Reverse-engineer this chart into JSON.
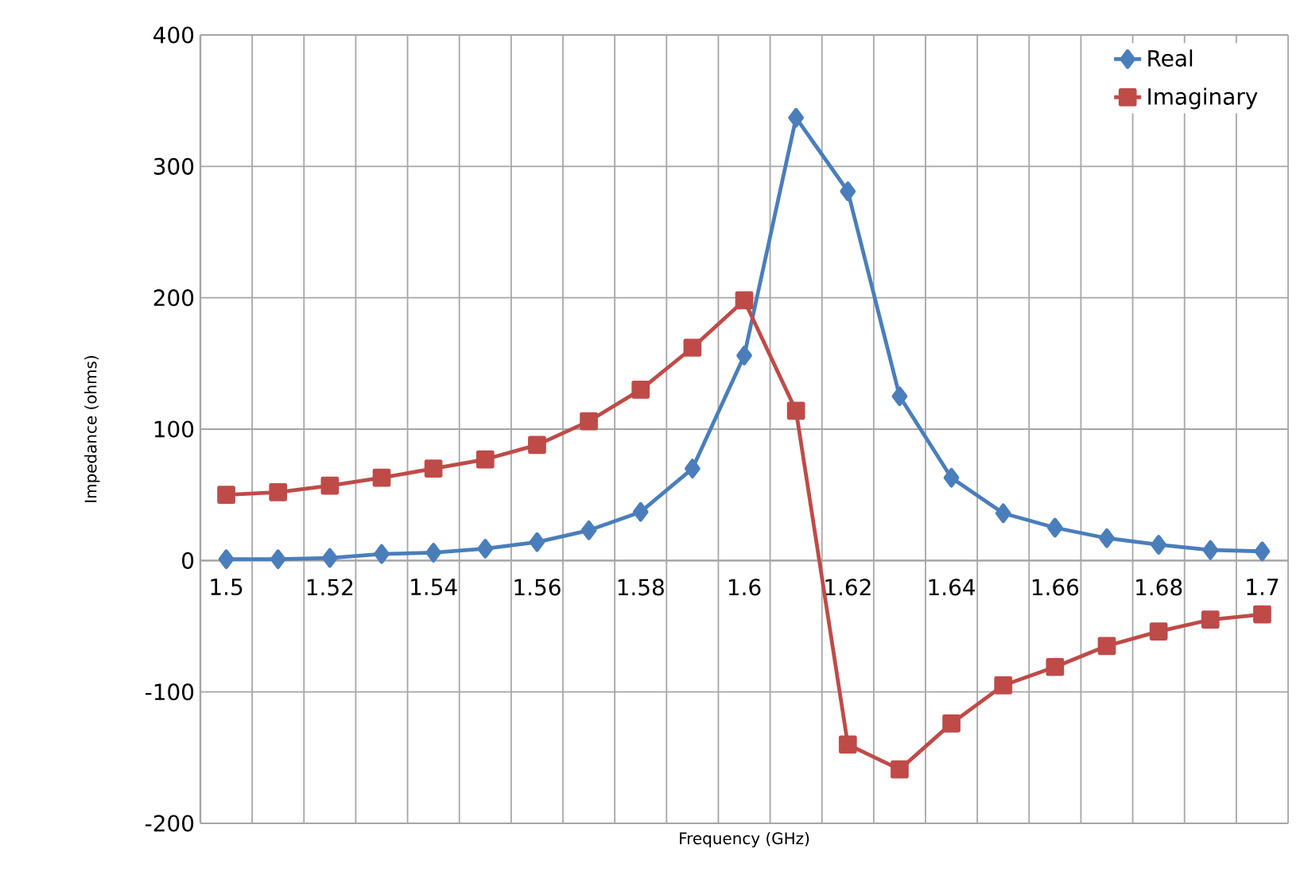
{
  "chart_data": {
    "type": "line",
    "xlabel": "Frequency (GHz)",
    "ylabel": "Impedance (ohms)",
    "categories": [
      "1.5",
      null,
      "1.52",
      null,
      "1.54",
      null,
      "1.56",
      null,
      "1.58",
      null,
      "1.6",
      null,
      "1.62",
      null,
      "1.64",
      null,
      "1.66",
      null,
      "1.68",
      null,
      "1.7"
    ],
    "series": [
      {
        "name": "Real",
        "color": "#4a7ebb",
        "marker": "diamond",
        "values": [
          1,
          1,
          2,
          5,
          6,
          9,
          14,
          23,
          37,
          70,
          156,
          337,
          281,
          125,
          63,
          36,
          25,
          17,
          12,
          8,
          7
        ]
      },
      {
        "name": "Imaginary",
        "color": "#be4b48",
        "marker": "square",
        "values": [
          50,
          52,
          57,
          63,
          70,
          77,
          88,
          106,
          130,
          162,
          198,
          114,
          -140,
          -159,
          -124,
          -95,
          -81,
          -65,
          -54,
          -45,
          -41
        ]
      }
    ],
    "ylim": [
      -200,
      400
    ],
    "yticks": [
      -200,
      -100,
      0,
      100,
      200,
      300,
      400
    ],
    "grid": true,
    "legend": "top right"
  }
}
